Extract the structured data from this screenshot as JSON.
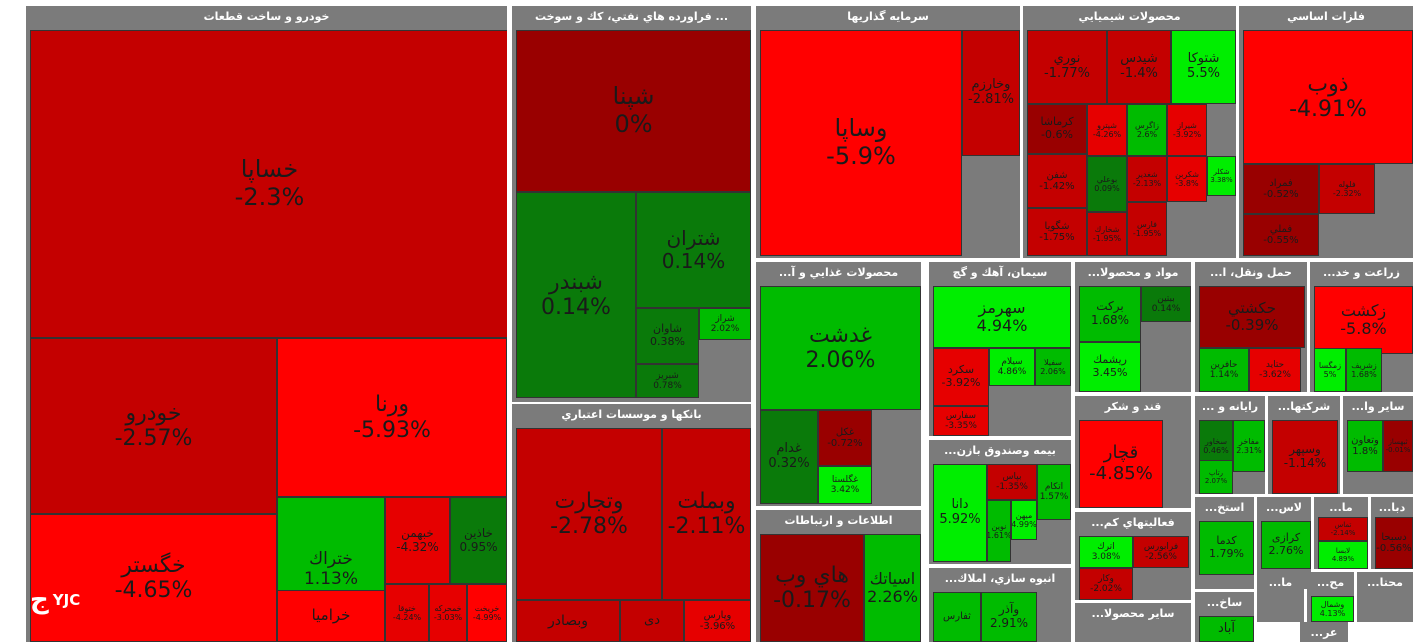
{
  "chart_data": {
    "type": "treemap",
    "sectors": [
      {
        "name": "خودرو و ساخت قطعات",
        "stocks": [
          {
            "name": "خساپا",
            "change": "-2.3%",
            "value": -2.3
          },
          {
            "name": "خودرو",
            "change": "-2.57%",
            "value": -2.57
          },
          {
            "name": "ورنا",
            "change": "-5.93%",
            "value": -5.93
          },
          {
            "name": "خگستر",
            "change": "-4.65%",
            "value": -4.65
          },
          {
            "name": "ختراك",
            "change": "1.13%",
            "value": 1.13
          },
          {
            "name": "خبهمن",
            "change": "-4.32%",
            "value": -4.32
          },
          {
            "name": "خاذين",
            "change": "0.95%",
            "value": 0.95
          },
          {
            "name": "خراميا",
            "change": "",
            "value": -5.5
          },
          {
            "name": "ختوقا",
            "change": "-4.24%",
            "value": -4.24
          },
          {
            "name": "خمحركه",
            "change": "-3.03%",
            "value": -3.03
          },
          {
            "name": "خريخت",
            "change": "-4.99%",
            "value": -4.99
          }
        ]
      },
      {
        "name": "... فراورده هاي نفتي، كك و سوخت",
        "stocks": [
          {
            "name": "شپنا",
            "change": "0%",
            "value": 0
          },
          {
            "name": "شبندر",
            "change": "0.14%",
            "value": 0.14
          },
          {
            "name": "شتران",
            "change": "0.14%",
            "value": 0.14
          },
          {
            "name": "شاوان",
            "change": "0.38%",
            "value": 0.38
          },
          {
            "name": "شراز",
            "change": "2.02%",
            "value": 2.02
          },
          {
            "name": "شبريز",
            "change": "0.78%",
            "value": 0.78
          }
        ]
      },
      {
        "name": "بانكها و موسسات اعتباري",
        "stocks": [
          {
            "name": "وتجارت",
            "change": "-2.78%",
            "value": -2.78
          },
          {
            "name": "وبملت",
            "change": "-2.11%",
            "value": -2.11
          },
          {
            "name": "وبصادر",
            "change": "",
            "value": -2.5
          },
          {
            "name": "دی",
            "change": "",
            "value": -2.2
          },
          {
            "name": "وپارس",
            "change": "-3.96%",
            "value": -3.96
          }
        ]
      },
      {
        "name": "سرمايه گذاريها",
        "stocks": [
          {
            "name": "وساپا",
            "change": "-5.9%",
            "value": -5.9
          },
          {
            "name": "وخارزم",
            "change": "-2.81%",
            "value": -2.81
          }
        ]
      },
      {
        "name": "محصولات شيميايي",
        "stocks": [
          {
            "name": "نوري",
            "change": "-1.77%",
            "value": -1.77
          },
          {
            "name": "شيدس",
            "change": "-1.4%",
            "value": -1.4
          },
          {
            "name": "شتوكا",
            "change": "5.5%",
            "value": 5.5
          },
          {
            "name": "كرماشا",
            "change": "-0.6%",
            "value": -0.6
          },
          {
            "name": "شپترو",
            "change": "-4.26%",
            "value": -4.26
          },
          {
            "name": "زاگرس",
            "change": "2.6%",
            "value": 2.6
          },
          {
            "name": "شيراز",
            "change": "-3.92%",
            "value": -3.92
          },
          {
            "name": "شفن",
            "change": "-1.42%",
            "value": -1.42
          },
          {
            "name": "بوعلي",
            "change": "0.09%",
            "value": 0.09
          },
          {
            "name": "شغدير",
            "change": "-2.13%",
            "value": -2.13
          },
          {
            "name": "شكربن",
            "change": "-3.8%",
            "value": -3.8
          },
          {
            "name": "شكلر",
            "change": "3.38%",
            "value": 3.38
          },
          {
            "name": "شگويا",
            "change": "-1.75%",
            "value": -1.75
          },
          {
            "name": "شخارك",
            "change": "-1.95%",
            "value": -1.95
          },
          {
            "name": "فارس",
            "change": "-1.95%",
            "value": -1.95
          }
        ]
      },
      {
        "name": "فلزات اساسي",
        "stocks": [
          {
            "name": "ذوب",
            "change": "-4.91%",
            "value": -4.91
          },
          {
            "name": "فمراد",
            "change": "-0.52%",
            "value": -0.52
          },
          {
            "name": "فلوله",
            "change": "-2.32%",
            "value": -2.32
          },
          {
            "name": "فملي",
            "change": "-0.55%",
            "value": -0.55
          }
        ]
      },
      {
        "name": "محصولات غذايي و آ...",
        "stocks": [
          {
            "name": "غدشت",
            "change": "2.06%",
            "value": 2.06
          },
          {
            "name": "غدام",
            "change": "0.32%",
            "value": 0.32
          },
          {
            "name": "غكل",
            "change": "-0.72%",
            "value": -0.72
          },
          {
            "name": "غگلستا",
            "change": "3.42%",
            "value": 3.42
          }
        ]
      },
      {
        "name": "اطلاعات و ارتباطات",
        "stocks": [
          {
            "name": "هاي وب",
            "change": "-0.17%",
            "value": -0.17
          },
          {
            "name": "اسياتك",
            "change": "2.26%",
            "value": 2.26
          }
        ]
      },
      {
        "name": "سيمان، آهك و گچ",
        "stocks": [
          {
            "name": "سهرمز",
            "change": "4.94%",
            "value": 4.94
          },
          {
            "name": "سكرد",
            "change": "-3.92%",
            "value": -3.92
          },
          {
            "name": "سيلام",
            "change": "4.86%",
            "value": 4.86
          },
          {
            "name": "سفيلا",
            "change": "2.06%",
            "value": 2.06
          },
          {
            "name": "سفارس",
            "change": "-3.35%",
            "value": -3.35
          }
        ]
      },
      {
        "name": "بيمه وصندوق بازن...",
        "stocks": [
          {
            "name": "دانا",
            "change": "5.92%",
            "value": 5.92
          },
          {
            "name": "بپاس",
            "change": "-1.35%",
            "value": -1.35
          },
          {
            "name": "اتكام",
            "change": "1.57%",
            "value": 1.57
          },
          {
            "name": "نوين",
            "change": "1.61%",
            "value": 1.61
          },
          {
            "name": "ميهن",
            "change": "4.99%",
            "value": 4.99
          }
        ]
      },
      {
        "name": "انبوه سازي، املاك...",
        "stocks": [
          {
            "name": "ثفارس",
            "change": "",
            "value": 1.5
          },
          {
            "name": "وآذر",
            "change": "2.91%",
            "value": 2.91
          }
        ]
      },
      {
        "name": "مواد و محصولا...",
        "stocks": [
          {
            "name": "بركت",
            "change": "1.68%",
            "value": 1.68
          },
          {
            "name": "ببتين",
            "change": "0.14%",
            "value": 0.14
          },
          {
            "name": "ريشمك",
            "change": "3.45%",
            "value": 3.45
          }
        ]
      },
      {
        "name": "حمل ونقل، ا...",
        "stocks": [
          {
            "name": "حكشتي",
            "change": "-0.39%",
            "value": -0.39
          },
          {
            "name": "حافرين",
            "change": "1.14%",
            "value": 1.14
          },
          {
            "name": "حتايد",
            "change": "-3.62%",
            "value": -3.62
          }
        ]
      },
      {
        "name": "زراعت و خد...",
        "stocks": [
          {
            "name": "زكشت",
            "change": "-5.8%",
            "value": -5.8
          },
          {
            "name": "زمگسا",
            "change": "5%",
            "value": 5
          },
          {
            "name": "زشريف",
            "change": "1.68%",
            "value": 1.68
          }
        ]
      },
      {
        "name": "قند و شكر",
        "stocks": [
          {
            "name": "قچار",
            "change": "-4.85%",
            "value": -4.85
          }
        ]
      },
      {
        "name": "فعاليتهاي كم...",
        "stocks": [
          {
            "name": "اترك",
            "change": "3.08%",
            "value": 3.08
          },
          {
            "name": "فرابورس",
            "change": "-2.56%",
            "value": -2.56
          },
          {
            "name": "وكار",
            "change": "-2.02%",
            "value": -2.02
          }
        ]
      },
      {
        "name": "سایر محصولا...",
        "stocks": []
      },
      {
        "name": "رايانه و ...",
        "stocks": [
          {
            "name": "سخاور",
            "change": "0.46%",
            "value": 0.46
          },
          {
            "name": "مفاخر",
            "change": "2.31%",
            "value": 2.31
          },
          {
            "name": "رتاپ",
            "change": "2.07%",
            "value": 2.07
          }
        ]
      },
      {
        "name": "شركتها...",
        "stocks": [
          {
            "name": "وسپهر",
            "change": "-1.14%",
            "value": -1.14
          }
        ]
      },
      {
        "name": "ساير وا...",
        "stocks": [
          {
            "name": "وتعاون",
            "change": "1.8%",
            "value": 1.8
          },
          {
            "name": "ثبهساز",
            "change": "-0.01%",
            "value": -0.01
          }
        ]
      },
      {
        "name": "استخ...",
        "stocks": [
          {
            "name": "كدما",
            "change": "1.79%",
            "value": 1.79
          }
        ]
      },
      {
        "name": "لاس...",
        "stocks": [
          {
            "name": "كرازی",
            "change": "2.76%",
            "value": 2.76
          }
        ]
      },
      {
        "name": "ما...",
        "stocks": [
          {
            "name": "تماس",
            "change": "-2.14%",
            "value": -2.14
          },
          {
            "name": "لابسا",
            "change": "4.89%",
            "value": 4.89
          }
        ]
      },
      {
        "name": "دبا...",
        "stocks": [
          {
            "name": "دسبحا",
            "change": "-0.56%",
            "value": -0.56
          }
        ]
      },
      {
        "name": "ساخ...",
        "stocks": [
          {
            "name": "آباد",
            "change": "",
            "value": 1.0
          }
        ]
      },
      {
        "name": "ما...",
        "stocks": []
      },
      {
        "name": "مح...",
        "stocks": [
          {
            "name": "وشمال",
            "change": "4.13%",
            "value": 4.13
          }
        ]
      },
      {
        "name": "محتا...",
        "stocks": []
      },
      {
        "name": "عر...",
        "stocks": []
      }
    ]
  },
  "logo": {
    "symbol": "ج",
    "text": "YJC"
  }
}
